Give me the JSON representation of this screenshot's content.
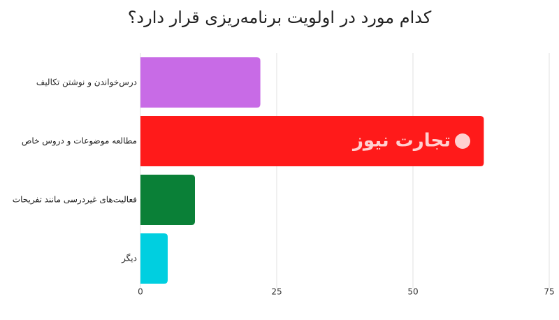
{
  "chart_data": {
    "type": "bar",
    "orientation": "horizontal",
    "title": "کدام مورد در اولویت برنامه‌ریزی قرار دارد؟",
    "categories": [
      "درس‌خواندن و نوشتن تکالیف",
      "مطالعه موضوعات و دروس خاص",
      "فعالیت‌های غیردرسی مانند تفریحات",
      "دیگر"
    ],
    "values": [
      22,
      63,
      10,
      5
    ],
    "colors": [
      "#c86be6",
      "#ff1a1a",
      "#0a8037",
      "#00cfe0"
    ],
    "xlim": [
      0,
      75
    ],
    "xticks": [
      0,
      25,
      50,
      75
    ],
    "grid": true,
    "annotation": "تجارت نیوز"
  }
}
